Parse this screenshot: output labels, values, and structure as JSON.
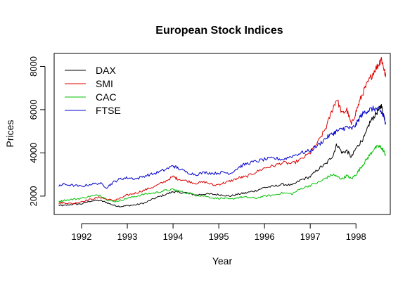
{
  "chart_data": {
    "type": "line",
    "title": "European Stock Indices",
    "xlabel": "Year",
    "ylabel": "Prices",
    "xlim": [
      1991.4,
      1998.75
    ],
    "ylim": [
      1150,
      8600
    ],
    "x_ticks": [
      {
        "value": 1992,
        "label": "1992"
      },
      {
        "value": 1993,
        "label": "1993"
      },
      {
        "value": 1994,
        "label": "1994"
      },
      {
        "value": 1995,
        "label": "1995"
      },
      {
        "value": 1996,
        "label": "1996"
      },
      {
        "value": 1997,
        "label": "1997"
      },
      {
        "value": 1998,
        "label": "1998"
      }
    ],
    "y_ticks": [
      {
        "value": 2000,
        "label": "2000"
      },
      {
        "value": 4000,
        "label": "4000"
      },
      {
        "value": 6000,
        "label": "6000"
      },
      {
        "value": 8000,
        "label": "8000"
      }
    ],
    "legend_position": "top-left",
    "grid": false,
    "series": [
      {
        "name": "DAX",
        "color": "#000000",
        "x": [
          1991.5,
          1991.6,
          1991.8,
          1992.0,
          1992.2,
          1992.4,
          1992.55,
          1992.7,
          1992.85,
          1993.0,
          1993.2,
          1993.4,
          1993.6,
          1993.8,
          1994.0,
          1994.1,
          1994.3,
          1994.5,
          1994.7,
          1994.9,
          1995.1,
          1995.25,
          1995.45,
          1995.6,
          1995.8,
          1996.0,
          1996.2,
          1996.4,
          1996.6,
          1996.8,
          1997.0,
          1997.2,
          1997.35,
          1997.5,
          1997.58,
          1997.7,
          1997.8,
          1997.9,
          1998.0,
          1998.1,
          1998.2,
          1998.3,
          1998.4,
          1998.5,
          1998.55,
          1998.6,
          1998.65
        ],
        "y": [
          1580,
          1560,
          1620,
          1640,
          1780,
          1800,
          1700,
          1580,
          1520,
          1560,
          1600,
          1700,
          1900,
          2050,
          2200,
          2180,
          2150,
          2050,
          2100,
          2080,
          2050,
          2000,
          2100,
          2150,
          2250,
          2400,
          2450,
          2550,
          2500,
          2750,
          2900,
          3300,
          3500,
          3900,
          4400,
          4000,
          4100,
          3800,
          4200,
          4500,
          4800,
          5400,
          5700,
          6000,
          6200,
          5800,
          5400
        ]
      },
      {
        "name": "SMI",
        "color": "#df0000",
        "x": [
          1991.5,
          1991.6,
          1991.8,
          1992.0,
          1992.2,
          1992.4,
          1992.55,
          1992.7,
          1992.85,
          1993.0,
          1993.2,
          1993.4,
          1993.6,
          1993.8,
          1994.0,
          1994.1,
          1994.3,
          1994.5,
          1994.7,
          1994.9,
          1995.1,
          1995.25,
          1995.45,
          1995.6,
          1995.8,
          1996.0,
          1996.2,
          1996.4,
          1996.6,
          1996.8,
          1997.0,
          1997.2,
          1997.35,
          1997.5,
          1997.58,
          1997.7,
          1997.8,
          1997.9,
          1998.0,
          1998.1,
          1998.2,
          1998.3,
          1998.4,
          1998.5,
          1998.55,
          1998.6,
          1998.65
        ],
        "y": [
          1680,
          1700,
          1650,
          1750,
          1850,
          1950,
          1850,
          1800,
          1900,
          2050,
          2150,
          2300,
          2450,
          2650,
          2900,
          2800,
          2700,
          2600,
          2650,
          2500,
          2600,
          2700,
          2850,
          2900,
          3100,
          3300,
          3400,
          3550,
          3500,
          3700,
          4000,
          4600,
          5200,
          6100,
          6500,
          5800,
          6000,
          5300,
          5900,
          6500,
          7000,
          7400,
          7800,
          8100,
          8400,
          8000,
          7500
        ]
      },
      {
        "name": "CAC",
        "color": "#00c000",
        "x": [
          1991.5,
          1991.6,
          1991.8,
          1992.0,
          1992.2,
          1992.4,
          1992.55,
          1992.7,
          1992.85,
          1993.0,
          1993.2,
          1993.4,
          1993.6,
          1993.8,
          1994.0,
          1994.1,
          1994.3,
          1994.5,
          1994.7,
          1994.9,
          1995.1,
          1995.25,
          1995.45,
          1995.6,
          1995.8,
          1996.0,
          1996.2,
          1996.4,
          1996.6,
          1996.8,
          1997.0,
          1997.2,
          1997.35,
          1997.5,
          1997.58,
          1997.7,
          1997.8,
          1997.9,
          1998.0,
          1998.1,
          1998.2,
          1998.3,
          1998.4,
          1998.5,
          1998.55,
          1998.6,
          1998.65
        ],
        "y": [
          1750,
          1800,
          1850,
          1900,
          2000,
          2050,
          1850,
          1750,
          1800,
          1900,
          2000,
          2100,
          2150,
          2250,
          2300,
          2250,
          2150,
          2050,
          2000,
          1900,
          1900,
          1850,
          1950,
          1950,
          1900,
          2000,
          2050,
          2150,
          2100,
          2350,
          2500,
          2650,
          2850,
          3000,
          2900,
          2800,
          2950,
          2800,
          3000,
          3300,
          3600,
          3900,
          4200,
          4300,
          4250,
          4100,
          3900
        ]
      },
      {
        "name": "FTSE",
        "color": "#0000cd",
        "x": [
          1991.5,
          1991.6,
          1991.8,
          1992.0,
          1992.2,
          1992.4,
          1992.55,
          1992.7,
          1992.85,
          1993.0,
          1993.2,
          1993.4,
          1993.6,
          1993.8,
          1994.0,
          1994.1,
          1994.3,
          1994.5,
          1994.7,
          1994.9,
          1995.1,
          1995.25,
          1995.45,
          1995.6,
          1995.8,
          1996.0,
          1996.2,
          1996.4,
          1996.6,
          1996.8,
          1997.0,
          1997.2,
          1997.35,
          1997.5,
          1997.58,
          1997.7,
          1997.8,
          1997.9,
          1998.0,
          1998.1,
          1998.2,
          1998.3,
          1998.4,
          1998.5,
          1998.55,
          1998.6,
          1998.65
        ],
        "y": [
          2450,
          2550,
          2500,
          2450,
          2550,
          2600,
          2400,
          2650,
          2800,
          2850,
          2800,
          2950,
          3050,
          3200,
          3400,
          3300,
          3100,
          3000,
          3100,
          3050,
          3100,
          3050,
          3350,
          3500,
          3600,
          3700,
          3750,
          3700,
          3850,
          4000,
          4100,
          4400,
          4700,
          4900,
          5000,
          5100,
          5200,
          5100,
          5300,
          5700,
          5900,
          6000,
          6050,
          6000,
          5900,
          5700,
          5400
        ]
      }
    ]
  }
}
